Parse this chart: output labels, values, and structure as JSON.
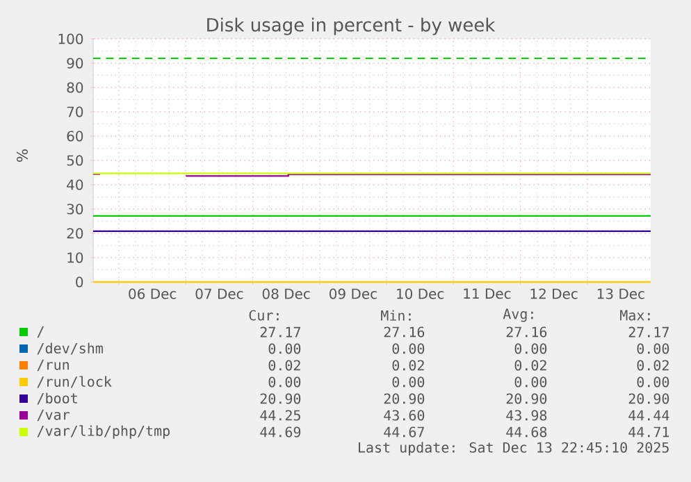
{
  "chart_data": {
    "type": "line",
    "title": "Disk usage in percent - by week",
    "ylabel": "%",
    "xlim": [
      "2025-12-05T14:45",
      "2025-12-13T22:45"
    ],
    "ylim": [
      0,
      100
    ],
    "yticks": [
      0,
      10,
      20,
      30,
      40,
      50,
      60,
      70,
      80,
      90,
      100
    ],
    "xticks": [
      {
        "value": "2025-12-06T00:00",
        "label": null
      },
      {
        "value": "2025-12-06T12:00",
        "label": "06 Dec"
      },
      {
        "value": "2025-12-07T00:00",
        "label": null
      },
      {
        "value": "2025-12-07T12:00",
        "label": "07 Dec"
      },
      {
        "value": "2025-12-08T00:00",
        "label": null
      },
      {
        "value": "2025-12-08T12:00",
        "label": "08 Dec"
      },
      {
        "value": "2025-12-09T00:00",
        "label": null
      },
      {
        "value": "2025-12-09T12:00",
        "label": "09 Dec"
      },
      {
        "value": "2025-12-10T00:00",
        "label": null
      },
      {
        "value": "2025-12-10T12:00",
        "label": "10 Dec"
      },
      {
        "value": "2025-12-11T00:00",
        "label": null
      },
      {
        "value": "2025-12-11T12:00",
        "label": "11 Dec"
      },
      {
        "value": "2025-12-12T00:00",
        "label": null
      },
      {
        "value": "2025-12-12T12:00",
        "label": "12 Dec"
      },
      {
        "value": "2025-12-13T00:00",
        "label": null
      },
      {
        "value": "2025-12-13T12:00",
        "label": "13 Dec"
      }
    ],
    "grid": true,
    "legend": "bottom",
    "marker": "none",
    "line_style": "solid",
    "series": [
      {
        "name": "/",
        "color": "#00cc00",
        "x": [
          "2025-12-05T14:45",
          "2025-12-13T22:45"
        ],
        "values": [
          27.17,
          27.17
        ]
      },
      {
        "name": "/dev/shm",
        "color": "#0066b3",
        "values": [
          null,
          null
        ]
      },
      {
        "name": "/run",
        "color": "#ff8000",
        "values": [
          null,
          null
        ]
      },
      {
        "name": "/run/lock",
        "color": "#ffcc00",
        "x": [
          "2025-12-05T14:45",
          "2025-12-13T22:45"
        ],
        "values": [
          0,
          0
        ]
      },
      {
        "name": "/boot",
        "color": "#330099",
        "x": [
          "2025-12-05T14:45",
          "2025-12-13T22:45"
        ],
        "values": [
          20.9,
          20.9
        ]
      },
      {
        "name": "/var",
        "color": "#990099",
        "x": [
          "2025-12-05T14:45",
          "2025-12-05T17:15",
          "2025-12-05T17:30",
          "2025-12-07T00:00",
          "2025-12-08T12:45",
          "2025-12-08T12:45",
          "2025-12-13T22:45"
        ],
        "values": [
          44.4,
          44.4,
          null,
          43.6,
          43.6,
          44.25,
          44.25
        ]
      },
      {
        "name": "/var/lib/php/tmp",
        "color": "#ccff00",
        "x": [
          "2025-12-05T14:45",
          "2025-12-13T22:45"
        ],
        "values": [
          44.69,
          44.69
        ]
      }
    ],
    "ref_lines": [
      {
        "axis": "y",
        "value": 92,
        "color": "#00cc00",
        "line_style": "dashed"
      }
    ],
    "annotations": [
      "Cur:",
      "Min:",
      "Avg:",
      "Max:",
      "27.17",
      "27.16",
      "27.16",
      "27.17",
      "0.00",
      "0.00",
      "0.00",
      "0.00",
      "0.02",
      "0.02",
      "0.02",
      "0.02",
      "0.00",
      "0.00",
      "0.00",
      "0.00",
      "20.90",
      "20.90",
      "20.90",
      "20.90",
      "44.25",
      "43.60",
      "43.98",
      "44.44",
      "44.69",
      "44.67",
      "44.68",
      "44.71",
      "Last update: Sat Dec 13 22:45:10 2025"
    ]
  }
}
